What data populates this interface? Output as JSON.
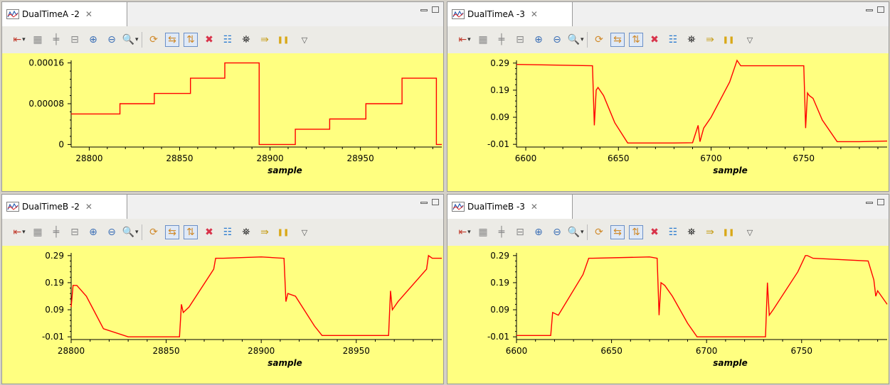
{
  "views": [
    {
      "tab": {
        "title": "DualTimeA -2",
        "icon": "chart-icon",
        "close_icon": "close-icon"
      },
      "chart_data": {
        "type": "line",
        "x_range": [
          28790,
          28995
        ],
        "y_range": [
          -5e-06,
          0.000165
        ],
        "xticks": [
          28800,
          28850,
          28900,
          28950
        ],
        "yticks": [
          0,
          8e-05,
          0.00016
        ],
        "ytick_labels": [
          "0",
          "0.00008",
          "0.00016"
        ],
        "xlabel": "sample",
        "series": [
          {
            "color": "#ff0000",
            "x": [
              28790,
              28817,
              28817,
              28836,
              28836,
              28856,
              28856,
              28875,
              28875,
              28894,
              28894,
              28914,
              28914,
              28933,
              28933,
              28953,
              28953,
              28973,
              28973,
              28992,
              28992,
              28995
            ],
            "y": [
              6e-05,
              6e-05,
              8e-05,
              8e-05,
              0.0001,
              0.0001,
              0.00013,
              0.00013,
              0.00016,
              0.00016,
              0.0,
              0.0,
              3e-05,
              3e-05,
              5e-05,
              5e-05,
              8e-05,
              8e-05,
              0.00013,
              0.00013,
              0.0,
              0.0
            ]
          }
        ]
      }
    },
    {
      "tab": {
        "title": "DualTimeA -3",
        "icon": "chart-icon",
        "close_icon": "close-icon"
      },
      "chart_data": {
        "type": "line",
        "x_range": [
          6595,
          6795
        ],
        "y_range": [
          -0.02,
          0.3
        ],
        "xticks": [
          6600,
          6650,
          6700,
          6750
        ],
        "yticks": [
          -0.01,
          0.09,
          0.19,
          0.29
        ],
        "ytick_labels": [
          "-0.01",
          "0.09",
          "0.19",
          "0.29"
        ],
        "xlabel": "sample",
        "series": [
          {
            "color": "#ff0000",
            "x": [
              6595,
              6636,
              6637,
              6638,
              6639,
              6642,
              6648,
              6655,
              6665,
              6680,
              6690,
              6693,
              6694,
              6696,
              6700,
              6710,
              6714,
              6716,
              6720,
              6750,
              6751,
              6752,
              6753,
              6755,
              6760,
              6768,
              6780,
              6795
            ],
            "y": [
              0.285,
              0.28,
              0.06,
              0.19,
              0.2,
              0.17,
              0.07,
              -0.005,
              -0.005,
              -0.005,
              -0.004,
              0.06,
              0.0,
              0.05,
              0.09,
              0.22,
              0.3,
              0.28,
              0.28,
              0.28,
              0.05,
              0.18,
              0.17,
              0.16,
              0.08,
              0.0,
              0.0,
              0.002
            ]
          }
        ]
      }
    },
    {
      "tab": {
        "title": "DualTimeB -2",
        "icon": "chart-icon",
        "close_icon": "close-icon"
      },
      "chart_data": {
        "type": "line",
        "x_range": [
          28800,
          28995
        ],
        "y_range": [
          -0.02,
          0.3
        ],
        "xticks": [
          28800,
          28850,
          28900,
          28950
        ],
        "yticks": [
          -0.01,
          0.09,
          0.19,
          0.29
        ],
        "ytick_labels": [
          "-0.01",
          "0.09",
          "0.19",
          "0.29"
        ],
        "xlabel": "sample",
        "series": [
          {
            "color": "#ff0000",
            "x": [
              28800,
              28801,
              28803,
              28808,
              28817,
              28830,
              28845,
              28857,
              28858,
              28859,
              28862,
              28875,
              28876,
              28880,
              28900,
              28912,
              28913,
              28914,
              28918,
              28928,
              28932,
              28945,
              28967,
              28968,
              28969,
              28972,
              28987,
              28988,
              28990,
              28995
            ],
            "y": [
              0.1,
              0.18,
              0.18,
              0.14,
              0.02,
              -0.01,
              -0.01,
              -0.01,
              0.11,
              0.08,
              0.1,
              0.24,
              0.28,
              0.28,
              0.285,
              0.28,
              0.12,
              0.15,
              0.14,
              0.03,
              -0.005,
              -0.005,
              -0.005,
              0.16,
              0.09,
              0.12,
              0.24,
              0.29,
              0.28,
              0.28
            ]
          }
        ]
      }
    },
    {
      "tab": {
        "title": "DualTimeB -3",
        "icon": "chart-icon",
        "close_icon": "close-icon"
      },
      "chart_data": {
        "type": "line",
        "x_range": [
          6600,
          6795
        ],
        "y_range": [
          -0.02,
          0.3
        ],
        "xticks": [
          6600,
          6650,
          6700,
          6750
        ],
        "yticks": [
          -0.01,
          0.09,
          0.19,
          0.29
        ],
        "ytick_labels": [
          "-0.01",
          "0.09",
          "0.19",
          "0.29"
        ],
        "xlabel": "sample",
        "series": [
          {
            "color": "#ff0000",
            "x": [
              6600,
              6615,
              6618,
              6619,
              6622,
              6635,
              6638,
              6640,
              6670,
              6674,
              6675,
              6676,
              6678,
              6682,
              6690,
              6695,
              6725,
              6731,
              6732,
              6733,
              6735,
              6748,
              6752,
              6753,
              6756,
              6785,
              6788,
              6789,
              6790,
              6795
            ],
            "y": [
              -0.005,
              -0.005,
              -0.005,
              0.08,
              0.07,
              0.22,
              0.28,
              0.28,
              0.285,
              0.28,
              0.07,
              0.19,
              0.18,
              0.14,
              0.04,
              -0.01,
              -0.01,
              -0.01,
              0.19,
              0.07,
              0.09,
              0.23,
              0.29,
              0.29,
              0.28,
              0.27,
              0.2,
              0.14,
              0.16,
              0.11
            ]
          }
        ]
      }
    }
  ],
  "toolbar_icons": [
    "reset-axes-icon",
    "fit-icon",
    "center-icon",
    "rescale-icon",
    "zoom-in-icon",
    "zoom-out-icon",
    "zoom-box-icon",
    "refresh-icon",
    "h-scroll-icon",
    "v-scroll-icon",
    "clear-icon",
    "legend-icon",
    "find-icon",
    "step-icon",
    "pause-icon",
    "view-menu-icon"
  ]
}
